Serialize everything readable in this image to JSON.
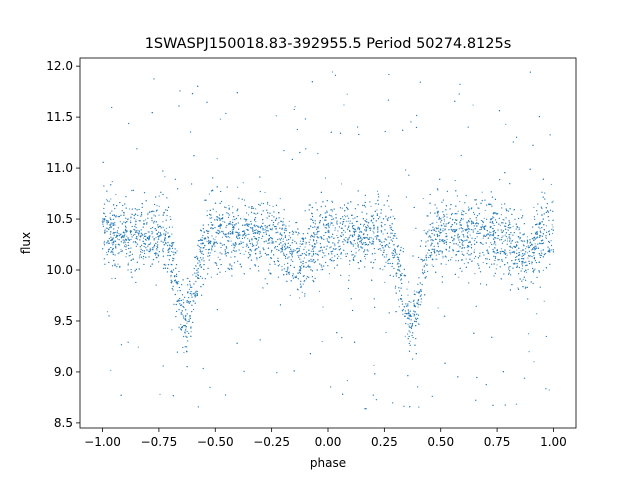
{
  "chart_data": {
    "type": "scatter",
    "title": "1SWASPJ150018.83-392955.5 Period 50274.8125s",
    "xlabel": "phase",
    "ylabel": "flux",
    "xlim": [
      -1.1,
      1.1
    ],
    "ylim": [
      8.45,
      12.08
    ],
    "x_ticks": [
      -1.0,
      -0.75,
      -0.5,
      -0.25,
      0.0,
      0.25,
      0.5,
      0.75,
      1.0
    ],
    "x_tick_labels": [
      "−1.00",
      "−0.75",
      "−0.50",
      "−0.25",
      "0.00",
      "0.25",
      "0.50",
      "0.75",
      "1.00"
    ],
    "y_ticks": [
      8.5,
      9.0,
      9.5,
      10.0,
      10.5,
      11.0,
      11.5,
      12.0
    ],
    "y_tick_labels": [
      "8.5",
      "9.0",
      "9.5",
      "10.0",
      "10.5",
      "11.0",
      "11.5",
      "12.0"
    ],
    "grid": false,
    "point_color": "#1f77b4",
    "series": [
      {
        "x_range": [
          -1.0,
          1.0
        ],
        "baseline_flux": 10.35,
        "primary_eclipse": {
          "phases": [
            -0.63,
            0.37
          ],
          "min_flux": 9.5
        },
        "secondary_eclipse": {
          "phases": [
            -0.13,
            0.87
          ],
          "min_flux": 10.12
        },
        "scatter_sigma": 0.17,
        "flux_range": [
          8.6,
          11.95
        ]
      }
    ]
  }
}
